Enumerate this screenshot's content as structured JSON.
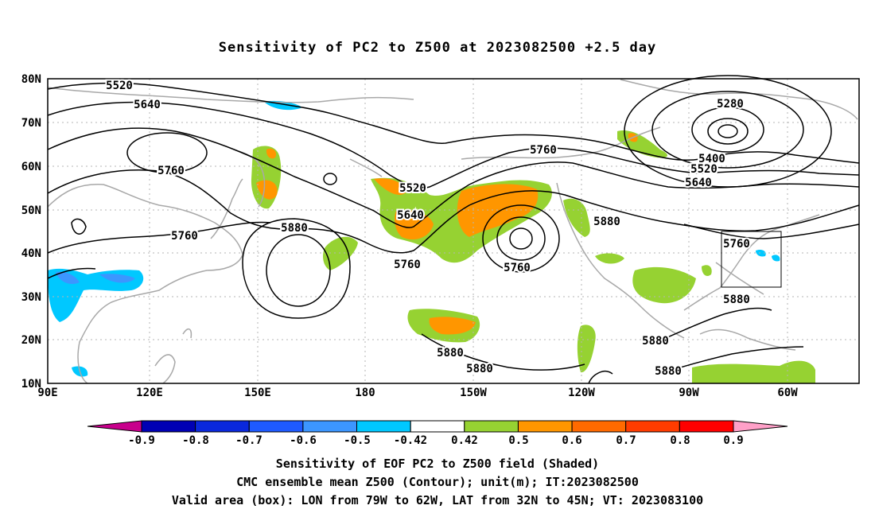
{
  "title": "Sensitivity of PC2 to Z500 at 2023082500 +2.5 day",
  "lat_ticks": [
    "80N",
    "70N",
    "60N",
    "50N",
    "40N",
    "30N",
    "20N",
    "10N"
  ],
  "lon_ticks": [
    "90E",
    "120E",
    "150E",
    "180",
    "150W",
    "120W",
    "90W",
    "60W"
  ],
  "contour_labels": [
    {
      "text": "5520",
      "kind": "contour"
    },
    {
      "text": "5640",
      "kind": "contour"
    },
    {
      "text": "5760",
      "kind": "contour"
    },
    {
      "text": "5760",
      "kind": "contour"
    },
    {
      "text": "5880",
      "kind": "contour"
    },
    {
      "text": "5520",
      "kind": "contour"
    },
    {
      "text": "5640",
      "kind": "contour"
    },
    {
      "text": "5760",
      "kind": "contour"
    },
    {
      "text": "5760",
      "kind": "contour"
    },
    {
      "text": "5760",
      "kind": "contour"
    },
    {
      "text": "5280",
      "kind": "contour"
    },
    {
      "text": "5400",
      "kind": "contour"
    },
    {
      "text": "5520",
      "kind": "contour"
    },
    {
      "text": "5640",
      "kind": "contour"
    },
    {
      "text": "5880",
      "kind": "contour"
    },
    {
      "text": "5760",
      "kind": "contour"
    },
    {
      "text": "5880",
      "kind": "contour"
    },
    {
      "text": "5880",
      "kind": "contour"
    },
    {
      "text": "5880",
      "kind": "contour"
    },
    {
      "text": "5880",
      "kind": "contour"
    },
    {
      "text": "5880",
      "kind": "contour"
    }
  ],
  "colorbar": {
    "labels": [
      "-0.9",
      "-0.8",
      "-0.7",
      "-0.6",
      "-0.5",
      "-0.42",
      "0.42",
      "0.5",
      "0.6",
      "0.7",
      "0.8",
      "0.9"
    ],
    "colors": [
      "#0000b4",
      "#0a28dc",
      "#1e5aff",
      "#3c96ff",
      "#00c8ff",
      "#ffffff",
      "#96d232",
      "#ff9600",
      "#ff6a00",
      "#ff3c00",
      "#ff0000"
    ],
    "low_end_color": "#c8008c",
    "high_end_color": "#ffa0c8"
  },
  "valid_box": {
    "lon_min": -79,
    "lon_max": -62,
    "lat_min": 32,
    "lat_max": 45
  },
  "captions": [
    "Sensitivity of EOF PC2 to Z500 field (Shaded)",
    "CMC ensemble mean Z500 (Contour); unit(m); IT:2023082500",
    "Valid area (box): LON from 79W to 62W, LAT from 32N to 45N; VT: 2023083100"
  ],
  "colors": {
    "contour": "#000000",
    "coast": "#a8a8a8",
    "grid": "#b4b4b4",
    "frame": "#000000"
  }
}
